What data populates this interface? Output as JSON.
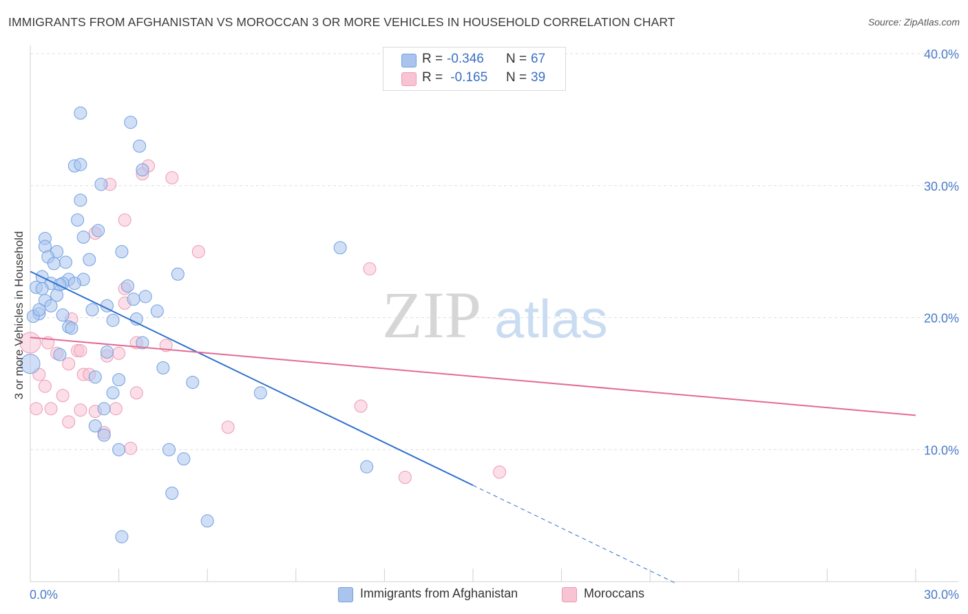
{
  "title": "IMMIGRANTS FROM AFGHANISTAN VS MOROCCAN 3 OR MORE VEHICLES IN HOUSEHOLD CORRELATION CHART",
  "source": "Source: ZipAtlas.com",
  "watermark": {
    "zip": "ZIP",
    "atlas": "atlas"
  },
  "legend": {
    "rows": [
      {
        "r_label": "R = ",
        "r_value": "-0.346",
        "n_label": "N = ",
        "n_value": "67"
      },
      {
        "r_label": "R = ",
        "r_value": " -0.165",
        "n_label": "N = ",
        "n_value": "39"
      }
    ]
  },
  "bottom_legend": {
    "blue": "Immigrants from Afghanistan",
    "pink": "Moroccans"
  },
  "colors": {
    "blue_fill": "#aac4ee",
    "blue_stroke": "#6f9fe0",
    "blue_line": "#2d6fce",
    "pink_fill": "#f8c3d3",
    "pink_stroke": "#ec9ab3",
    "pink_line": "#e36a93",
    "grid": "#dedede",
    "tick_text": "#4a7ac8"
  },
  "chart_data": {
    "type": "scatter",
    "title": "IMMIGRANTS FROM AFGHANISTAN VS MOROCCAN 3 OR MORE VEHICLES IN HOUSEHOLD CORRELATION CHART",
    "xlabel": "",
    "ylabel": "3 or more Vehicles in Household",
    "xlim": [
      0,
      30
    ],
    "ylim": [
      0,
      40
    ],
    "x_ticks": [
      "0.0%",
      "30.0%"
    ],
    "y_ticks": [
      "10.0%",
      "20.0%",
      "30.0%",
      "40.0%"
    ],
    "y_tick_values": [
      10,
      20,
      30,
      40
    ],
    "grid": true,
    "legend_position": "top-center",
    "series": [
      {
        "name": "Immigrants from Afghanistan",
        "color": "#aac4ee",
        "points": [
          [
            1.7,
            35.5
          ],
          [
            3.4,
            34.8
          ],
          [
            3.7,
            33.0
          ],
          [
            1.5,
            31.5
          ],
          [
            1.7,
            31.6
          ],
          [
            3.8,
            31.2
          ],
          [
            2.4,
            30.1
          ],
          [
            1.7,
            28.9
          ],
          [
            1.6,
            27.4
          ],
          [
            2.3,
            26.6
          ],
          [
            1.8,
            26.1
          ],
          [
            0.5,
            26.0
          ],
          [
            0.5,
            25.4
          ],
          [
            3.1,
            25.0
          ],
          [
            10.5,
            25.3
          ],
          [
            0.9,
            25.0
          ],
          [
            0.6,
            24.6
          ],
          [
            2.0,
            24.4
          ],
          [
            0.8,
            24.1
          ],
          [
            1.2,
            24.2
          ],
          [
            0.4,
            23.1
          ],
          [
            1.3,
            22.9
          ],
          [
            1.8,
            22.9
          ],
          [
            5.0,
            23.3
          ],
          [
            0.7,
            22.6
          ],
          [
            1.1,
            22.6
          ],
          [
            1.5,
            22.6
          ],
          [
            0.2,
            22.3
          ],
          [
            0.4,
            22.2
          ],
          [
            3.3,
            22.4
          ],
          [
            0.9,
            21.7
          ],
          [
            3.9,
            21.6
          ],
          [
            3.5,
            21.4
          ],
          [
            0.5,
            21.3
          ],
          [
            0.7,
            20.9
          ],
          [
            2.6,
            20.9
          ],
          [
            2.1,
            20.6
          ],
          [
            4.3,
            20.5
          ],
          [
            0.3,
            20.3
          ],
          [
            1.1,
            20.2
          ],
          [
            0.1,
            20.1
          ],
          [
            2.8,
            19.8
          ],
          [
            3.6,
            19.9
          ],
          [
            1.3,
            19.3
          ],
          [
            1.4,
            19.2
          ],
          [
            3.8,
            18.1
          ],
          [
            2.6,
            17.4
          ],
          [
            1.0,
            17.2
          ],
          [
            0.0,
            16.5
          ],
          [
            4.5,
            16.2
          ],
          [
            2.2,
            15.5
          ],
          [
            3.0,
            15.3
          ],
          [
            5.5,
            15.1
          ],
          [
            2.8,
            14.3
          ],
          [
            7.8,
            14.3
          ],
          [
            2.5,
            13.1
          ],
          [
            2.2,
            11.8
          ],
          [
            2.5,
            11.1
          ],
          [
            3.0,
            10.0
          ],
          [
            4.7,
            10.0
          ],
          [
            5.2,
            9.3
          ],
          [
            11.4,
            8.7
          ],
          [
            4.8,
            6.7
          ],
          [
            6.0,
            4.6
          ],
          [
            3.1,
            3.4
          ],
          [
            1.0,
            22.5
          ],
          [
            0.3,
            20.6
          ]
        ]
      },
      {
        "name": "Moroccans",
        "color": "#f8c3d3",
        "points": [
          [
            3.8,
            30.9
          ],
          [
            4.0,
            31.5
          ],
          [
            4.8,
            30.6
          ],
          [
            2.7,
            30.1
          ],
          [
            3.2,
            27.4
          ],
          [
            2.2,
            26.4
          ],
          [
            5.7,
            25.0
          ],
          [
            11.5,
            23.7
          ],
          [
            3.2,
            22.2
          ],
          [
            3.2,
            21.1
          ],
          [
            1.4,
            19.9
          ],
          [
            0.0,
            18.1
          ],
          [
            3.6,
            18.1
          ],
          [
            4.6,
            17.9
          ],
          [
            0.6,
            18.1
          ],
          [
            1.6,
            17.5
          ],
          [
            1.7,
            17.5
          ],
          [
            0.9,
            17.3
          ],
          [
            3.0,
            17.3
          ],
          [
            2.6,
            17.1
          ],
          [
            1.3,
            16.5
          ],
          [
            0.3,
            15.7
          ],
          [
            1.8,
            15.7
          ],
          [
            2.0,
            15.7
          ],
          [
            0.5,
            14.8
          ],
          [
            1.1,
            14.1
          ],
          [
            3.6,
            14.3
          ],
          [
            0.2,
            13.1
          ],
          [
            0.7,
            13.1
          ],
          [
            1.7,
            13.0
          ],
          [
            2.2,
            12.9
          ],
          [
            2.9,
            13.1
          ],
          [
            11.2,
            13.3
          ],
          [
            1.3,
            12.1
          ],
          [
            6.7,
            11.7
          ],
          [
            2.5,
            11.3
          ],
          [
            3.4,
            10.1
          ],
          [
            15.9,
            8.3
          ],
          [
            12.7,
            7.9
          ]
        ]
      }
    ],
    "trend_lines": [
      {
        "series": "Immigrants from Afghanistan",
        "x": [
          0,
          15
        ],
        "y": [
          23.5,
          7.3
        ],
        "dashed_extension_to_x": 21.9
      },
      {
        "series": "Moroccans",
        "x": [
          0,
          30
        ],
        "y": [
          18.5,
          12.6
        ]
      }
    ]
  }
}
